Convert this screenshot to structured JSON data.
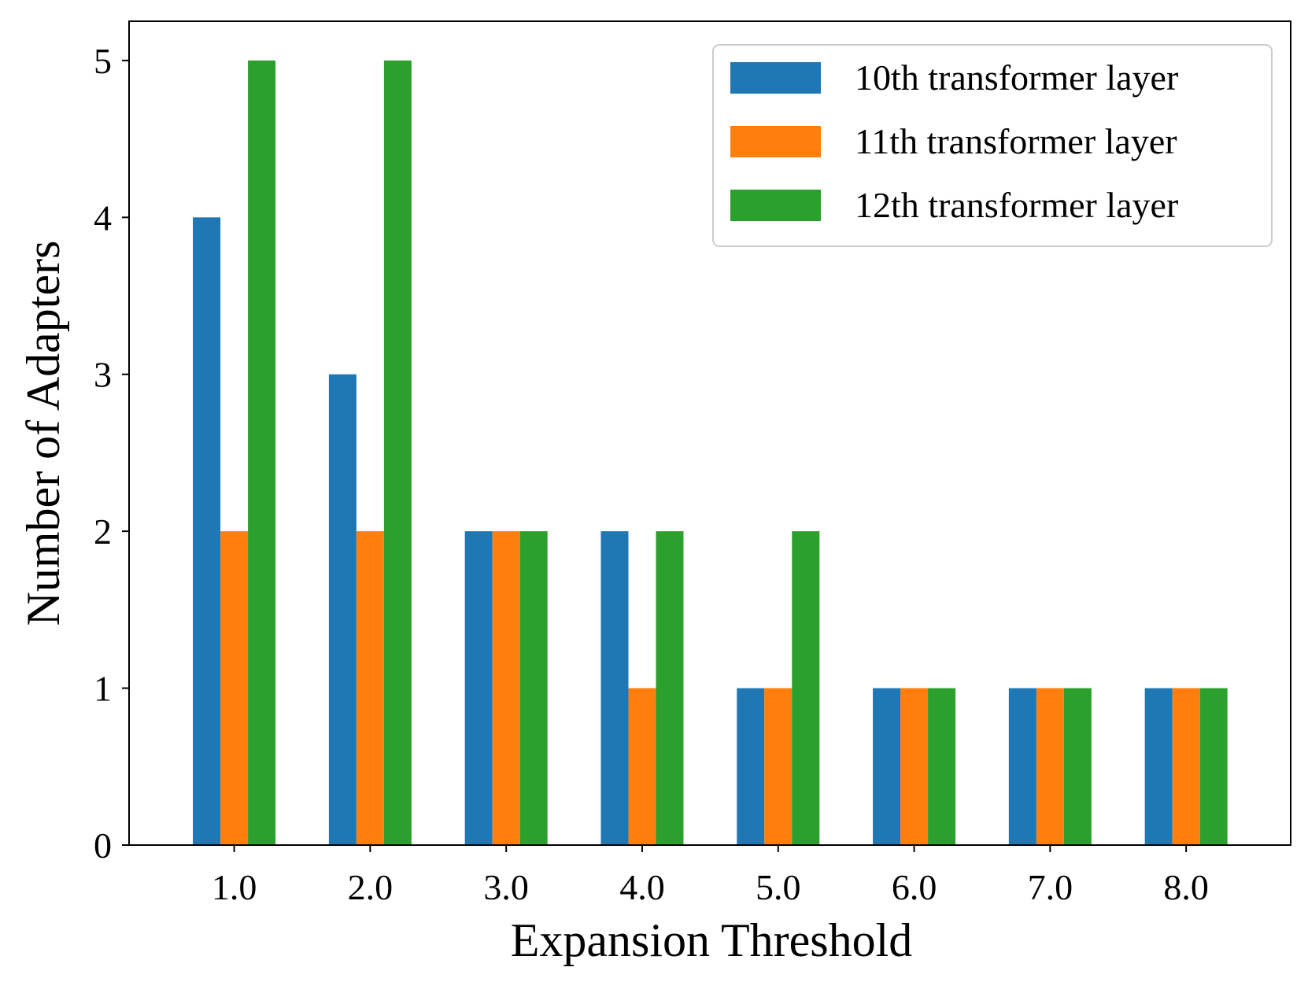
{
  "chart_data": {
    "type": "bar",
    "title": "",
    "xlabel": "Expansion Threshold",
    "ylabel": "Number of Adapters",
    "categories": [
      "1.0",
      "2.0",
      "3.0",
      "4.0",
      "5.0",
      "6.0",
      "7.0",
      "8.0"
    ],
    "series": [
      {
        "name": "10th transformer layer",
        "color": "#1f77b4",
        "values": [
          4,
          3,
          2,
          2,
          1,
          1,
          1,
          1
        ]
      },
      {
        "name": "11th transformer layer",
        "color": "#ff7f0e",
        "values": [
          2,
          2,
          2,
          1,
          1,
          1,
          1,
          1
        ]
      },
      {
        "name": "12th transformer layer",
        "color": "#2ca02c",
        "values": [
          5,
          5,
          2,
          2,
          2,
          1,
          1,
          1
        ]
      }
    ],
    "ylim": [
      0,
      5.25
    ],
    "yticks": [
      "0",
      "1",
      "2",
      "3",
      "4",
      "5"
    ],
    "grid": false,
    "legend_position": "top-right"
  }
}
